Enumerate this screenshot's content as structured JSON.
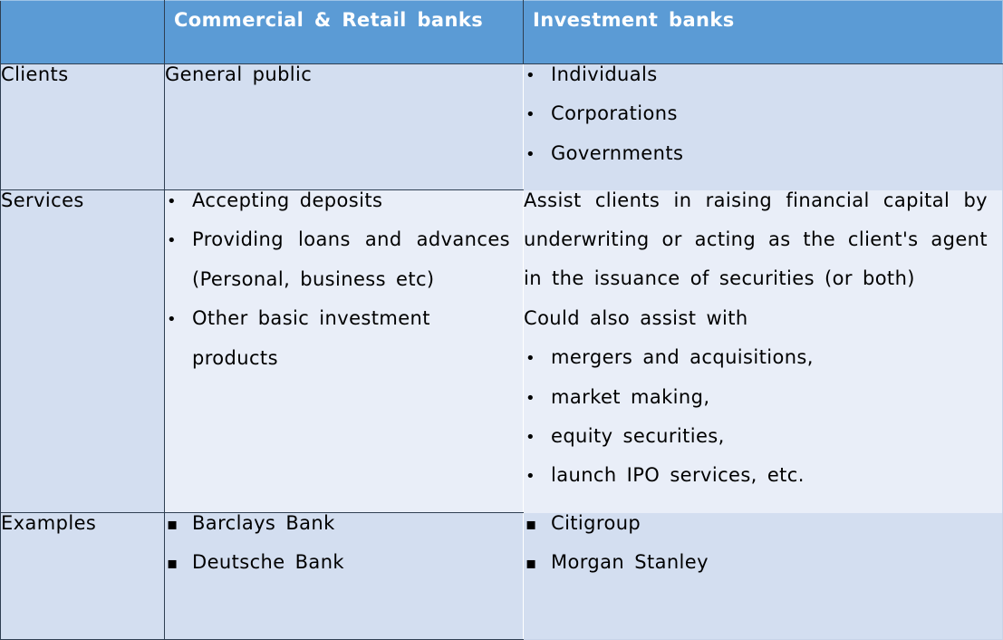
{
  "header": {
    "col0": "",
    "col1": "Commercial  & Retail banks",
    "col2": "Investment banks"
  },
  "rows": {
    "clients": {
      "label": "Clients",
      "commercial": "General  public",
      "investment": [
        "Individuals",
        "Corporations",
        "Governments"
      ]
    },
    "services": {
      "label": "Services",
      "commercial": [
        "Accepting  deposits",
        "Providing  loans  and  advances (Personal,  business  etc)",
        "Other  basic  investment products"
      ],
      "investment_paragraph": "Assist  clients  in  raising  financial  capital  by underwriting  or  acting  as  the  client's  agent  in the  issuance  of  securities  (or  both)",
      "investment_lead": "Could  also  assist  with",
      "investment_list": [
        "mergers  and  acquisitions,",
        "market  making,",
        "equity  securities,",
        "launch  IPO  services,  etc."
      ]
    },
    "examples": {
      "label": "Examples",
      "commercial": [
        "Barclays  Bank",
        "Deutsche  Bank"
      ],
      "investment": [
        "Citigroup",
        "Morgan  Stanley"
      ]
    }
  },
  "colors": {
    "header_bg": "#5b9bd5",
    "band_dark": "#d3def0",
    "band_light": "#e9eef8"
  }
}
